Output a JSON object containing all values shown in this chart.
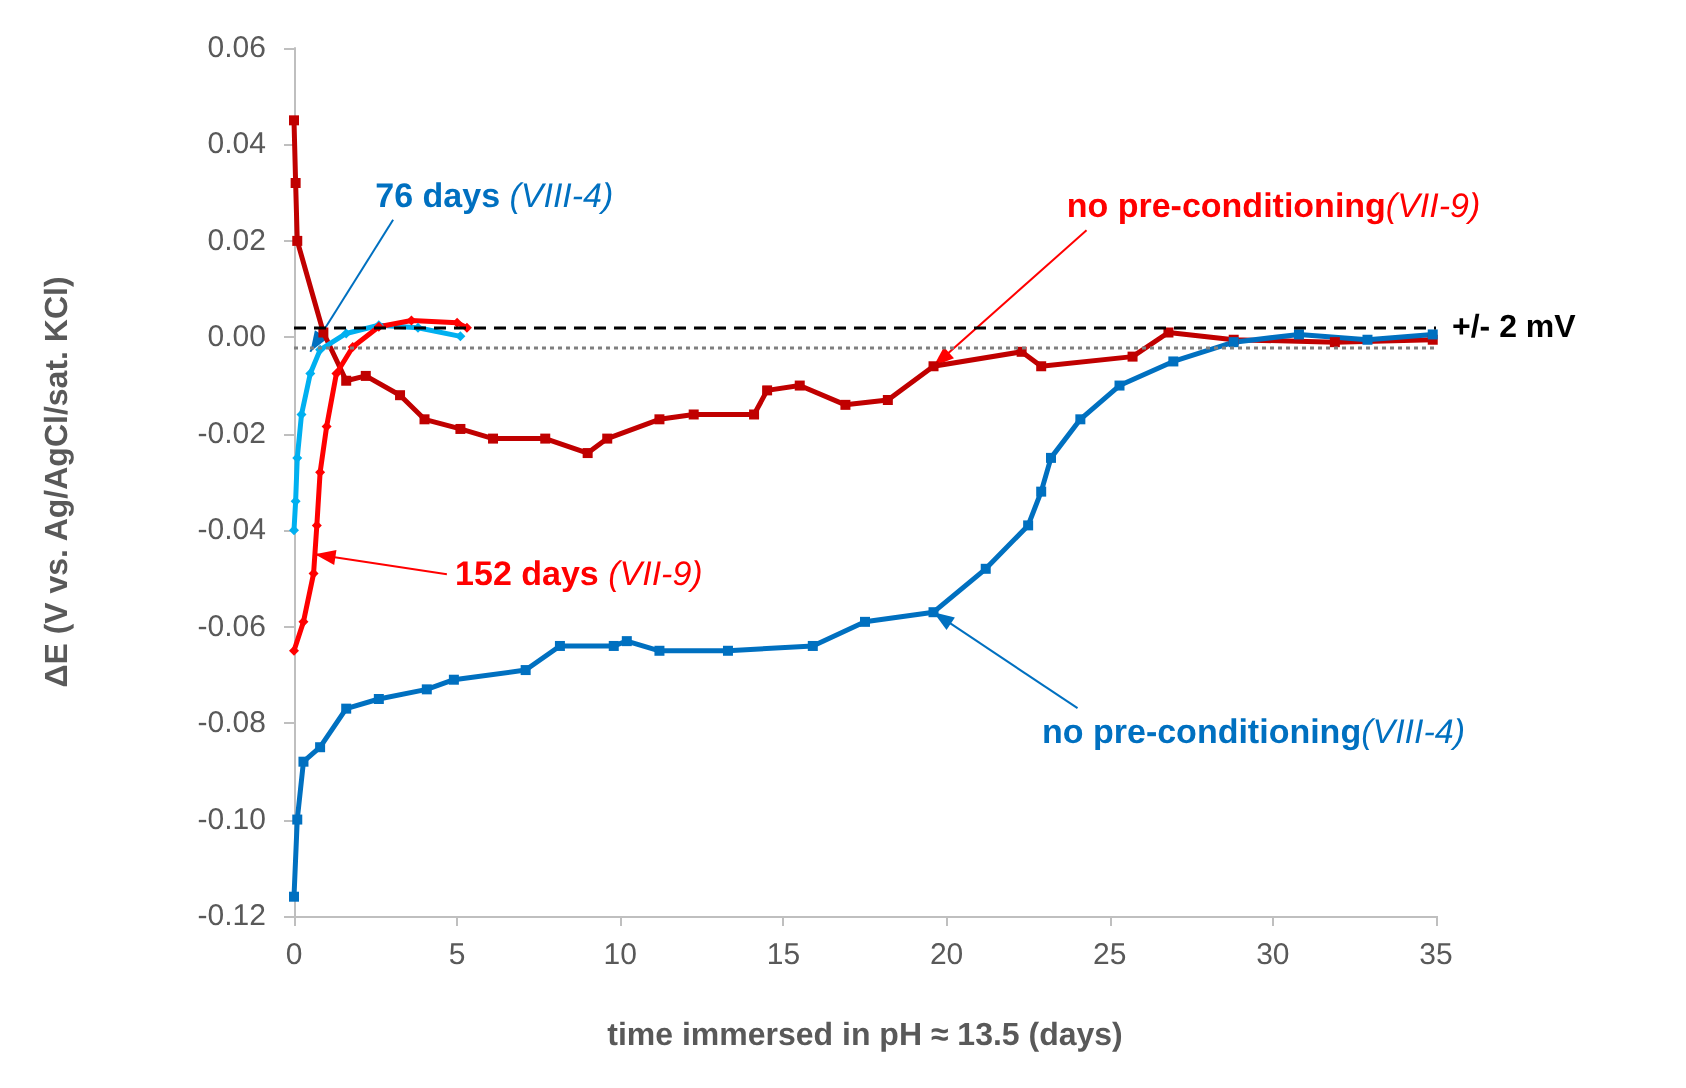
{
  "chart_data": {
    "type": "line",
    "xlabel": "time immersed in pH ≈ 13.5 (days)",
    "ylabel": "ΔE (V vs. Ag/AgCl/sat. KCl)",
    "xlim": [
      0,
      35
    ],
    "xticks": [
      0,
      5,
      10,
      15,
      20,
      25,
      30,
      35
    ],
    "ylim": [
      -0.12,
      0.06
    ],
    "yticks": [
      {
        "value": -0.12,
        "label": "-0.12"
      },
      {
        "value": -0.1,
        "label": "-0.10"
      },
      {
        "value": -0.08,
        "label": "-0.08"
      },
      {
        "value": -0.06,
        "label": "-0.06"
      },
      {
        "value": -0.04,
        "label": "-0.04"
      },
      {
        "value": -0.02,
        "label": "-0.02"
      },
      {
        "value": 0,
        "label": "0.00"
      },
      {
        "value": 0.02,
        "label": "0.02"
      },
      {
        "value": 0.04,
        "label": "0.04"
      },
      {
        "value": 0.06,
        "label": "0.06"
      }
    ],
    "grid": false,
    "series": [
      {
        "color": "#c00000",
        "marker": "square",
        "x": [
          0,
          0.05,
          0.1,
          0.9,
          1.6,
          2.2,
          3.25,
          4.0,
          5.1,
          6.1,
          7.7,
          9.0,
          9.6,
          11.2,
          12.25,
          14.1,
          14.5,
          15.5,
          16.9,
          18.2,
          19.6,
          22.3,
          22.9,
          25.7,
          26.8,
          28.8,
          31.9,
          34.9
        ],
        "values": [
          0.045,
          0.032,
          0.02,
          0.001,
          -0.009,
          -0.008,
          -0.012,
          -0.017,
          -0.019,
          -0.021,
          -0.021,
          -0.024,
          -0.021,
          -0.017,
          -0.016,
          -0.016,
          -0.011,
          -0.01,
          -0.014,
          -0.013,
          -0.006,
          -0.003,
          -0.006,
          -0.004,
          0.001,
          -0.0005,
          -0.001,
          -0.0005
        ]
      },
      {
        "color": "#0070c0",
        "marker": "square",
        "x": [
          0,
          0.1,
          0.29,
          0.8,
          1.6,
          2.6,
          4.07,
          4.9,
          7.1,
          8.15,
          9.8,
          10.2,
          11.2,
          13.3,
          15.9,
          17.5,
          19.6,
          21.2,
          22.5,
          22.9,
          23.2,
          24.1,
          25.3,
          26.95,
          28.8,
          30.8,
          32.9,
          34.9
        ],
        "values": [
          -0.116,
          -0.1,
          -0.088,
          -0.085,
          -0.077,
          -0.075,
          -0.073,
          -0.071,
          -0.069,
          -0.064,
          -0.064,
          -0.063,
          -0.065,
          -0.065,
          -0.064,
          -0.059,
          -0.057,
          -0.048,
          -0.039,
          -0.032,
          -0.025,
          -0.017,
          -0.01,
          -0.005,
          -0.001,
          0.0006,
          -0.0005,
          0.0006
        ]
      },
      {
        "color": "#00b0f0",
        "marker": "diamond",
        "x": [
          0,
          0.05,
          0.1,
          0.23,
          0.5,
          0.8,
          1.6,
          2.6,
          3.8,
          5.1
        ],
        "values": [
          -0.04,
          -0.034,
          -0.025,
          -0.016,
          -0.0075,
          -0.0026,
          0.0008,
          0.0025,
          0.002,
          0.0002
        ]
      },
      {
        "color": "#ff0000",
        "marker": "diamond",
        "x": [
          0,
          0.29,
          0.6,
          0.7,
          0.8,
          1.0,
          1.3,
          1.8,
          2.6,
          3.6,
          5.0,
          5.3
        ],
        "values": [
          -0.065,
          -0.059,
          -0.049,
          -0.039,
          -0.028,
          -0.0185,
          -0.0075,
          -0.002,
          0.0022,
          0.0035,
          0.003,
          0.002
        ]
      }
    ],
    "ref_lines": [
      {
        "axis": "y",
        "value": 0.002,
        "label": "+/- 2 mV",
        "color": "#000000",
        "line_style": "dashed"
      },
      {
        "axis": "y",
        "value": -0.002,
        "color": "#7f7f7f",
        "line_style": "dotted"
      }
    ],
    "annotations": [
      {
        "text": "76 days (VIII-4)",
        "x": 0.5,
        "y": -0.003
      },
      {
        "text": "no pre-conditioning(VII-9)",
        "x": 19.6,
        "y": -0.006
      },
      {
        "text": "152 days (VII-9)",
        "x": 0.64,
        "y": -0.045
      },
      {
        "text": "no pre-conditioning(VIII-4)",
        "x": 19.6,
        "y": -0.057
      }
    ]
  }
}
